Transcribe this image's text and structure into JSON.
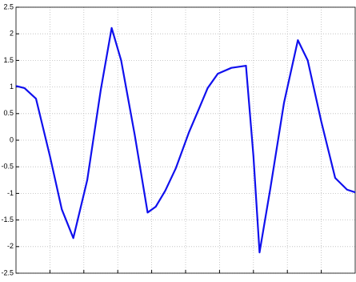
{
  "chart_data": {
    "type": "line",
    "x": [
      0,
      0.25,
      0.59,
      1.0,
      1.35,
      1.69,
      2.1,
      2.5,
      2.82,
      3.1,
      3.5,
      3.88,
      4.12,
      4.4,
      4.71,
      5.1,
      5.4,
      5.65,
      5.95,
      6.35,
      6.78,
      7.0,
      7.18,
      7.5,
      7.9,
      8.31,
      8.6,
      9.0,
      9.41,
      9.76,
      10
    ],
    "series": [
      {
        "color": "#1010ee",
        "values": [
          1.02,
          0.98,
          0.78,
          -0.3,
          -1.3,
          -1.84,
          -0.75,
          0.95,
          2.11,
          1.5,
          0.1,
          -1.36,
          -1.25,
          -0.95,
          -0.53,
          0.15,
          0.6,
          0.98,
          1.25,
          1.36,
          1.4,
          -0.3,
          -2.11,
          -0.9,
          0.7,
          1.88,
          1.5,
          0.35,
          -0.71,
          -0.93,
          -0.98
        ]
      }
    ],
    "xlim": [
      0,
      10
    ],
    "xticks": [
      1,
      2,
      3,
      4,
      5,
      6,
      7,
      8,
      9
    ],
    "ylim": [
      -2.5,
      2.5
    ],
    "yticks": [
      -2.5,
      -2,
      -1.5,
      -1,
      -0.5,
      0,
      0.5,
      1,
      1.5,
      2,
      2.5
    ],
    "grid": true
  }
}
